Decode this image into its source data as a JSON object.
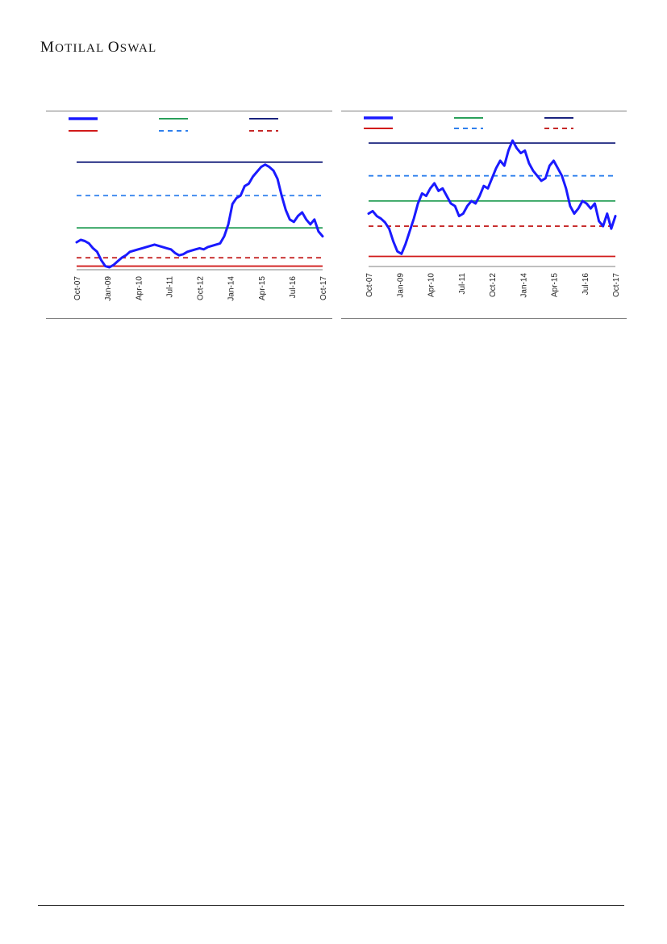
{
  "header": {
    "brand_first": "M",
    "brand_rest1": "OTILAL ",
    "brand_second": "O",
    "brand_rest2": "SWAL"
  },
  "colors": {
    "series": "#1a1aff",
    "avg": "#2aa05a",
    "plus2sd": "#1a237e",
    "minus2sd": "#d11a1a",
    "plus1sd": "#2f80ed",
    "minus1sd": "#c62828",
    "axis": "#7f7f7f"
  },
  "chart_data": [
    {
      "type": "line",
      "x_tick_labels": [
        "Oct-07",
        "Jan-09",
        "Apr-10",
        "Jul-11",
        "Oct-12",
        "Jan-14",
        "Apr-15",
        "Jul-16",
        "Oct-17"
      ],
      "ylim": [
        0,
        100
      ],
      "reference_lines": {
        "plus2sd": 90,
        "plus1sd": 62,
        "avg": 35,
        "minus1sd": 10,
        "minus2sd": 3
      },
      "series": [
        {
          "x": [
            "Oct-07",
            "Dec-07",
            "Feb-08",
            "Apr-08",
            "Jun-08",
            "Aug-08",
            "Oct-08",
            "Dec-08",
            "Feb-09",
            "Apr-09",
            "Jun-09",
            "Aug-09",
            "Oct-09",
            "Dec-09",
            "Feb-10",
            "Apr-10",
            "Jun-10",
            "Aug-10",
            "Oct-10",
            "Dec-10",
            "Feb-11",
            "Apr-11",
            "Jun-11",
            "Aug-11",
            "Oct-11",
            "Dec-11",
            "Feb-12",
            "Apr-12",
            "Jun-12",
            "Aug-12",
            "Oct-12",
            "Dec-12",
            "Feb-13",
            "Apr-13",
            "Jun-13",
            "Aug-13",
            "Oct-13",
            "Dec-13",
            "Feb-14",
            "Apr-14",
            "Jun-14",
            "Aug-14",
            "Oct-14",
            "Dec-14",
            "Feb-15",
            "Apr-15",
            "Jun-15",
            "Aug-15",
            "Oct-15",
            "Dec-15",
            "Feb-16",
            "Apr-16",
            "Jun-16",
            "Aug-16",
            "Oct-16",
            "Dec-16",
            "Feb-17",
            "Apr-17",
            "Jun-17",
            "Aug-17",
            "Oct-17"
          ],
          "values": [
            23,
            25,
            24,
            22,
            18,
            15,
            8,
            3,
            2,
            4,
            7,
            10,
            12,
            15,
            16,
            17,
            18,
            19,
            20,
            21,
            20,
            19,
            18,
            17,
            14,
            12,
            13,
            15,
            16,
            17,
            18,
            17,
            19,
            20,
            21,
            22,
            28,
            38,
            55,
            60,
            62,
            70,
            72,
            78,
            82,
            86,
            88,
            86,
            83,
            76,
            62,
            50,
            42,
            40,
            45,
            48,
            42,
            38,
            42,
            32,
            28
          ]
        }
      ]
    },
    {
      "type": "line",
      "x_tick_labels": [
        "Oct-07",
        "Jan-09",
        "Apr-10",
        "Jul-11",
        "Oct-12",
        "Jan-14",
        "Apr-15",
        "Jul-16",
        "Oct-17"
      ],
      "ylim": [
        0,
        100
      ],
      "reference_lines": {
        "plus2sd": 98,
        "plus1sd": 72,
        "avg": 52,
        "minus1sd": 32,
        "minus2sd": 8
      },
      "series": [
        {
          "x": [
            "Oct-07",
            "Dec-07",
            "Feb-08",
            "Apr-08",
            "Jun-08",
            "Aug-08",
            "Oct-08",
            "Dec-08",
            "Feb-09",
            "Apr-09",
            "Jun-09",
            "Aug-09",
            "Oct-09",
            "Dec-09",
            "Feb-10",
            "Apr-10",
            "Jun-10",
            "Aug-10",
            "Oct-10",
            "Dec-10",
            "Feb-11",
            "Apr-11",
            "Jun-11",
            "Aug-11",
            "Oct-11",
            "Dec-11",
            "Feb-12",
            "Apr-12",
            "Jun-12",
            "Aug-12",
            "Oct-12",
            "Dec-12",
            "Feb-13",
            "Apr-13",
            "Jun-13",
            "Aug-13",
            "Oct-13",
            "Dec-13",
            "Feb-14",
            "Apr-14",
            "Jun-14",
            "Aug-14",
            "Oct-14",
            "Dec-14",
            "Feb-15",
            "Apr-15",
            "Jun-15",
            "Aug-15",
            "Oct-15",
            "Dec-15",
            "Feb-16",
            "Apr-16",
            "Jun-16",
            "Aug-16",
            "Oct-16",
            "Dec-16",
            "Feb-17",
            "Apr-17",
            "Jun-17",
            "Aug-17",
            "Oct-17"
          ],
          "values": [
            42,
            44,
            40,
            38,
            35,
            30,
            20,
            12,
            10,
            18,
            28,
            38,
            50,
            58,
            56,
            62,
            66,
            60,
            62,
            56,
            50,
            48,
            40,
            42,
            48,
            52,
            50,
            56,
            64,
            62,
            70,
            78,
            84,
            80,
            92,
            100,
            94,
            90,
            92,
            82,
            76,
            72,
            68,
            70,
            80,
            84,
            78,
            72,
            62,
            48,
            42,
            46,
            52,
            50,
            46,
            50,
            36,
            32,
            42,
            30,
            40
          ]
        }
      ]
    }
  ]
}
